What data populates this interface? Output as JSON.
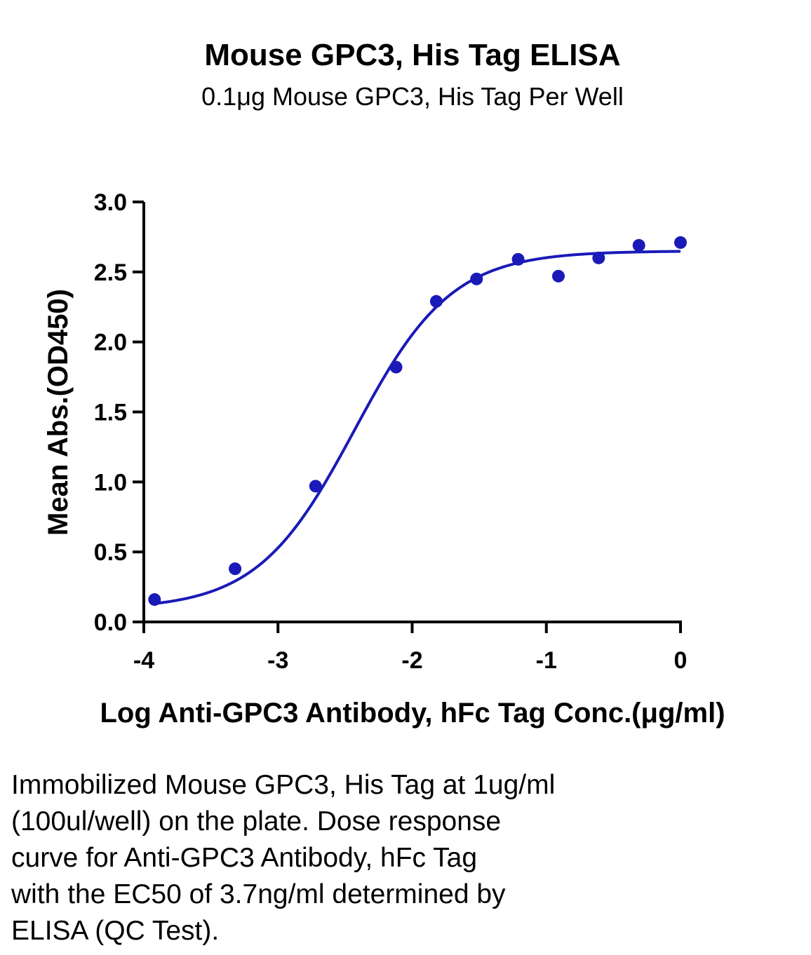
{
  "chart_data": {
    "type": "scatter",
    "title": "Mouse GPC3, His Tag ELISA",
    "subtitle": "0.1μg Mouse GPC3, His Tag Per Well",
    "xlabel": "Log Anti-GPC3 Antibody, hFc Tag Conc.(μg/ml)",
    "ylabel": "Mean Abs.(OD450)",
    "xlim": [
      -4,
      0
    ],
    "ylim": [
      0,
      3.0
    ],
    "x_ticks": [
      -4,
      -3,
      -2,
      -1,
      0
    ],
    "x_tick_labels": [
      "-4",
      "-3",
      "-2",
      "-1",
      "0"
    ],
    "y_ticks": [
      0,
      0.5,
      1.0,
      1.5,
      2.0,
      2.5,
      3.0
    ],
    "y_tick_labels": [
      "0.0",
      "0.5",
      "1.0",
      "1.5",
      "2.0",
      "2.5",
      "3.0"
    ],
    "grid": false,
    "legend": "none",
    "color": "#1a1ab8",
    "points": {
      "x": [
        -3.92,
        -3.32,
        -2.72,
        -2.12,
        -1.82,
        -1.52,
        -1.21,
        -0.91,
        -0.61,
        -0.31,
        0.0
      ],
      "y": [
        0.16,
        0.38,
        0.97,
        1.82,
        2.29,
        2.45,
        2.59,
        2.47,
        2.6,
        2.69,
        2.71
      ]
    },
    "fit_curve": {
      "model": "4PL",
      "bottom": 0.09,
      "top": 2.65,
      "log_ec50": -2.43,
      "hill_slope": 1.2
    }
  },
  "caption": {
    "lines": [
      "Immobilized Mouse GPC3, His Tag at 1ug/ml",
      "(100ul/well) on the plate. Dose response",
      "curve for Anti-GPC3 Antibody, hFc Tag",
      "with the EC50 of 3.7ng/ml determined by",
      "ELISA (QC Test)."
    ]
  }
}
